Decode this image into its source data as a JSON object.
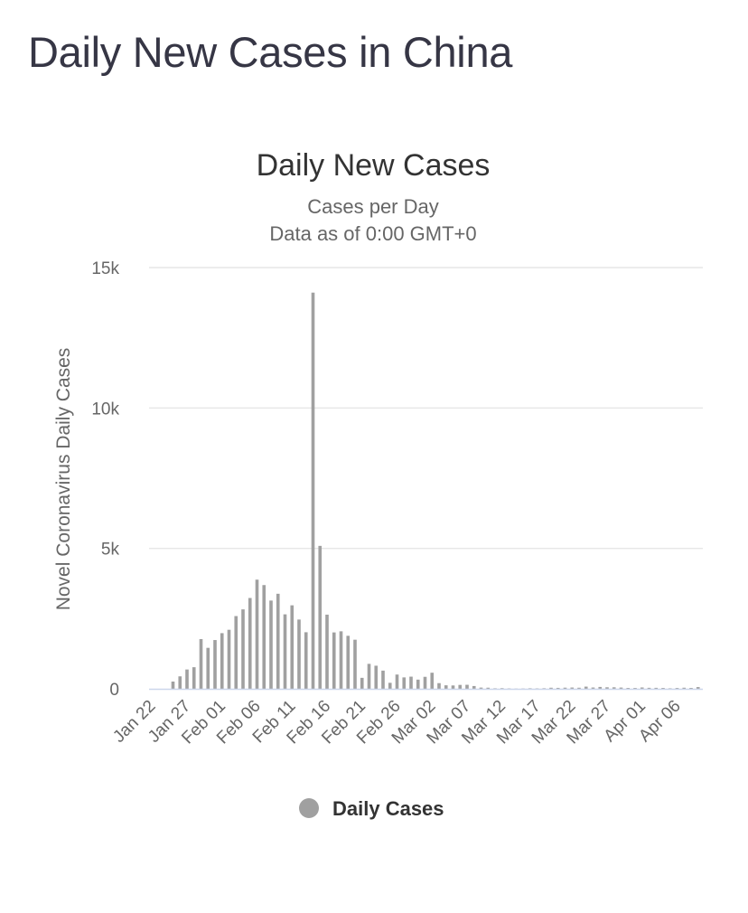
{
  "page": {
    "title": "Daily New Cases in China"
  },
  "chart_data": {
    "type": "bar",
    "title": "Daily New Cases",
    "subtitle_lines": [
      "Cases per Day",
      "Data as of 0:00 GMT+0"
    ],
    "ylabel": "Novel Coronavirus Daily Cases",
    "xlabel": "",
    "ylim": [
      0,
      15000
    ],
    "y_ticks": [
      0,
      5000,
      10000,
      15000
    ],
    "y_tick_labels": [
      "0",
      "5k",
      "10k",
      "15k"
    ],
    "x_tick_labels": [
      "Jan 22",
      "Jan 27",
      "Feb 01",
      "Feb 06",
      "Feb 11",
      "Feb 16",
      "Feb 21",
      "Feb 26",
      "Mar 02",
      "Mar 07",
      "Mar 12",
      "Mar 17",
      "Mar 22",
      "Mar 27",
      "Apr 01",
      "Apr 06"
    ],
    "grid": true,
    "legend_position": "bottom-center",
    "bar_color": "#a0a0a0",
    "grid_color": "#e6e6e6",
    "axis_color": "#ccd6eb",
    "categories": [
      "Jan 22",
      "Jan 23",
      "Jan 24",
      "Jan 25",
      "Jan 26",
      "Jan 27",
      "Jan 28",
      "Jan 29",
      "Jan 30",
      "Jan 31",
      "Feb 01",
      "Feb 02",
      "Feb 03",
      "Feb 04",
      "Feb 05",
      "Feb 06",
      "Feb 07",
      "Feb 08",
      "Feb 09",
      "Feb 10",
      "Feb 11",
      "Feb 12",
      "Feb 13",
      "Feb 14",
      "Feb 15",
      "Feb 16",
      "Feb 17",
      "Feb 18",
      "Feb 19",
      "Feb 20",
      "Feb 21",
      "Feb 22",
      "Feb 23",
      "Feb 24",
      "Feb 25",
      "Feb 26",
      "Feb 27",
      "Feb 28",
      "Feb 29",
      "Mar 01",
      "Mar 02",
      "Mar 03",
      "Mar 04",
      "Mar 05",
      "Mar 06",
      "Mar 07",
      "Mar 08",
      "Mar 09",
      "Mar 10",
      "Mar 11",
      "Mar 12",
      "Mar 13",
      "Mar 14",
      "Mar 15",
      "Mar 16",
      "Mar 17",
      "Mar 18",
      "Mar 19",
      "Mar 20",
      "Mar 21",
      "Mar 22",
      "Mar 23",
      "Mar 24",
      "Mar 25",
      "Mar 26",
      "Mar 27",
      "Mar 28",
      "Mar 29",
      "Mar 30",
      "Mar 31",
      "Apr 01",
      "Apr 02",
      "Apr 03",
      "Apr 04",
      "Apr 05",
      "Apr 06",
      "Apr 07",
      "Apr 08"
    ],
    "series": [
      {
        "name": "Daily Cases",
        "values": [
          0,
          0,
          259,
          444,
          688,
          769,
          1771,
          1459,
          1737,
          1982,
          2102,
          2590,
          2829,
          3235,
          3887,
          3694,
          3143,
          3385,
          2652,
          2973,
          2467,
          2015,
          14108,
          5090,
          2641,
          2008,
          2048,
          1888,
          1749,
          391,
          889,
          823,
          648,
          214,
          508,
          406,
          433,
          327,
          427,
          573,
          202,
          125,
          119,
          139,
          143,
          99,
          44,
          40,
          19,
          24,
          15,
          8,
          11,
          20,
          16,
          21,
          39,
          34,
          41,
          46,
          39,
          78,
          47,
          67,
          55,
          54,
          45,
          31,
          30,
          48,
          36,
          35,
          31,
          19,
          30,
          39,
          32,
          62
        ]
      }
    ]
  }
}
